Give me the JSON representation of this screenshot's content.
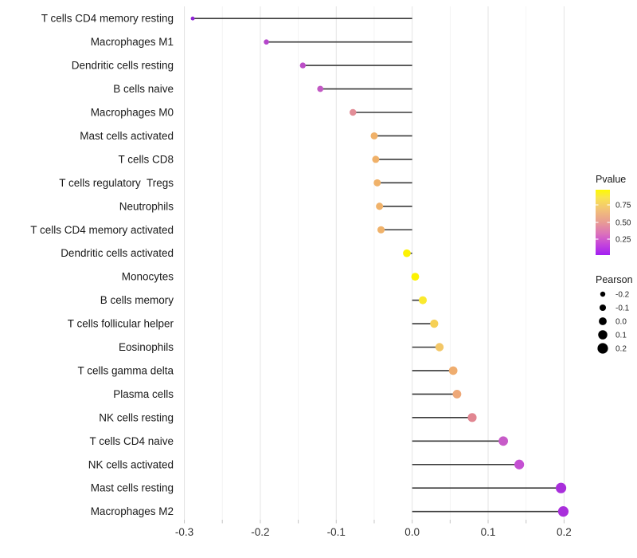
{
  "chart_data": {
    "type": "lollipop",
    "orientation": "horizontal",
    "title": "",
    "xlabel": "",
    "ylabel": "",
    "grid": true,
    "legend_position": "right",
    "x_axis": {
      "domain": [
        -0.31,
        0.23
      ],
      "major_ticks": [
        -0.3,
        -0.2,
        -0.1,
        0.0,
        0.1,
        0.2
      ],
      "major_tick_labels": [
        "-0.3",
        "-0.2",
        "-0.1",
        "0.0",
        "0.1",
        "0.2"
      ],
      "minor_ticks": [
        -0.25,
        -0.15,
        -0.05,
        0.05,
        0.15
      ]
    },
    "points": [
      {
        "category": "T cells CD4 memory resting",
        "pearson": -0.289,
        "color": "#8E24D4"
      },
      {
        "category": "Macrophages M1",
        "pearson": -0.192,
        "color": "#B546CB"
      },
      {
        "category": "Dendritic cells resting",
        "pearson": -0.144,
        "color": "#BC4EC7"
      },
      {
        "category": "B cells naive",
        "pearson": -0.121,
        "color": "#C259C4"
      },
      {
        "category": "Macrophages M0",
        "pearson": -0.078,
        "color": "#E28D97"
      },
      {
        "category": "Mast cells activated",
        "pearson": -0.05,
        "color": "#F0B169"
      },
      {
        "category": "T cells CD8",
        "pearson": -0.048,
        "color": "#F0B169"
      },
      {
        "category": "T cells regulatory  Tregs",
        "pearson": -0.046,
        "color": "#F0B26A"
      },
      {
        "category": "Neutrophils",
        "pearson": -0.043,
        "color": "#F0B26A"
      },
      {
        "category": "T cells CD4 memory activated",
        "pearson": -0.041,
        "color": "#F0B26A"
      },
      {
        "category": "Dendritic cells activated",
        "pearson": -0.007,
        "color": "#FCF203"
      },
      {
        "category": "Monocytes",
        "pearson": 0.004,
        "color": "#FCF203"
      },
      {
        "category": "B cells memory",
        "pearson": 0.014,
        "color": "#FAE92E"
      },
      {
        "category": "T cells follicular helper",
        "pearson": 0.029,
        "color": "#F6D055"
      },
      {
        "category": "Eosinophils",
        "pearson": 0.036,
        "color": "#F3C767"
      },
      {
        "category": "T cells gamma delta",
        "pearson": 0.054,
        "color": "#EFAD6F"
      },
      {
        "category": "Plasma cells",
        "pearson": 0.059,
        "color": "#EEA878"
      },
      {
        "category": "NK cells resting",
        "pearson": 0.079,
        "color": "#E18691"
      },
      {
        "category": "T cells CD4 naive",
        "pearson": 0.12,
        "color": "#C75BC8"
      },
      {
        "category": "NK cells activated",
        "pearson": 0.141,
        "color": "#C44FD2"
      },
      {
        "category": "Mast cells resting",
        "pearson": 0.196,
        "color": "#A92FDB"
      },
      {
        "category": "Macrophages M2",
        "pearson": 0.199,
        "color": "#A92FDB"
      }
    ],
    "legend_pvalue": {
      "title": "Pvalue",
      "ticks": [
        {
          "label": "0.75",
          "position": 0.232
        },
        {
          "label": "0.50",
          "position": 0.5
        },
        {
          "label": "0.25",
          "position": 0.756
        }
      ],
      "gradient": [
        {
          "offset": 0.0,
          "color": "#FDF900"
        },
        {
          "offset": 0.12,
          "color": "#F9E54F"
        },
        {
          "offset": 0.3,
          "color": "#F2C276"
        },
        {
          "offset": 0.5,
          "color": "#E89B94"
        },
        {
          "offset": 0.68,
          "color": "#DB70BC"
        },
        {
          "offset": 0.84,
          "color": "#C444DC"
        },
        {
          "offset": 1.0,
          "color": "#A21FF2"
        }
      ]
    },
    "legend_pearson": {
      "title": "Pearson",
      "entries": [
        {
          "label": "-0.2",
          "value": -0.2
        },
        {
          "label": "-0.1",
          "value": -0.1
        },
        {
          "label": "0.0",
          "value": 0.0
        },
        {
          "label": "0.1",
          "value": 0.1
        },
        {
          "label": "0.2",
          "value": 0.2
        }
      ],
      "dot_color": "#000000"
    },
    "style": {
      "stem_color": "#3A3A3A",
      "major_grid_color": "#E4E4E4",
      "minor_grid_color": "#F1F1F1",
      "axis_tick_color": "#C4C4C4"
    }
  }
}
